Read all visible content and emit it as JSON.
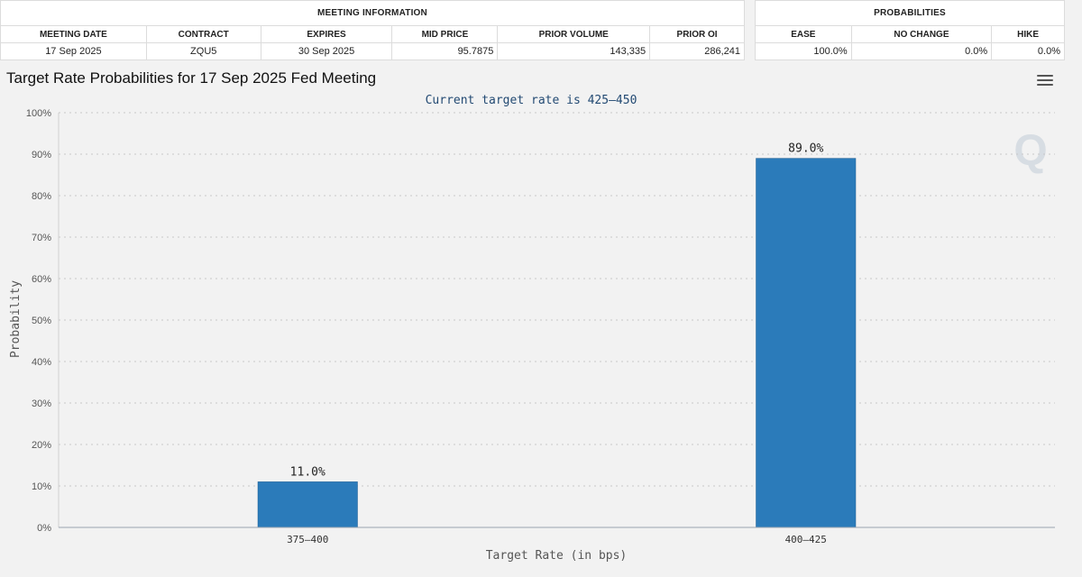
{
  "meeting_table": {
    "section_title": "MEETING INFORMATION",
    "headers": [
      "MEETING DATE",
      "CONTRACT",
      "EXPIRES",
      "MID PRICE",
      "PRIOR VOLUME",
      "PRIOR OI"
    ],
    "values": [
      "17 Sep 2025",
      "ZQU5",
      "30 Sep 2025",
      "95.7875",
      "143,335",
      "286,241"
    ]
  },
  "prob_table": {
    "section_title": "PROBABILITIES",
    "headers": [
      "EASE",
      "NO CHANGE",
      "HIKE"
    ],
    "values": [
      "100.0%",
      "0.0%",
      "0.0%"
    ]
  },
  "chart_data": {
    "type": "bar",
    "title": "Target Rate Probabilities for 17 Sep 2025 Fed Meeting",
    "subtitle": "Current target rate is 425–450",
    "xlabel": "Target Rate (in bps)",
    "ylabel": "Probability",
    "categories": [
      "375–400",
      "400–425"
    ],
    "values": [
      11.0,
      89.0
    ],
    "data_labels": [
      "11.0%",
      "89.0%"
    ],
    "ylim": [
      0,
      100
    ],
    "yticks": [
      "0%",
      "10%",
      "20%",
      "30%",
      "40%",
      "50%",
      "60%",
      "70%",
      "80%",
      "90%",
      "100%"
    ],
    "grid": true,
    "bar_color": "#2b7bba"
  },
  "watermark": {
    "letter": "Q"
  }
}
